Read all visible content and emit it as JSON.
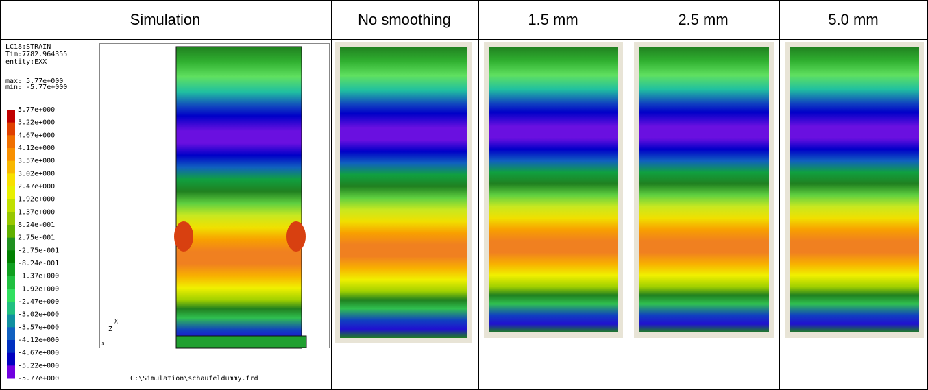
{
  "header": {
    "columns": [
      "Simulation",
      "No smoothing",
      "1.5 mm",
      "2.5 mm",
      "5.0 mm"
    ]
  },
  "simulation": {
    "info": [
      "LC18:STRAIN",
      "Tim:7782.964355",
      "entity:EXX"
    ],
    "range": [
      "max: 5.77e+000",
      "min: -5.77e+000"
    ],
    "legend_labels": [
      "5.77e+000",
      "5.22e+000",
      "4.67e+000",
      "4.12e+000",
      "3.57e+000",
      "3.02e+000",
      "2.47e+000",
      "1.92e+000",
      "1.37e+000",
      "8.24e-001",
      "2.75e-001",
      "-2.75e-001",
      "-8.24e-001",
      "-1.37e+000",
      "-1.92e+000",
      "-2.47e+000",
      "-3.02e+000",
      "-3.57e+000",
      "-4.12e+000",
      "-4.67e+000",
      "-5.22e+000",
      "-5.77e+000"
    ],
    "axis": {
      "z": "Z",
      "x": "X"
    },
    "corner": "s",
    "file": "C:\\Simulation\\schaufeldummy.frd"
  }
}
